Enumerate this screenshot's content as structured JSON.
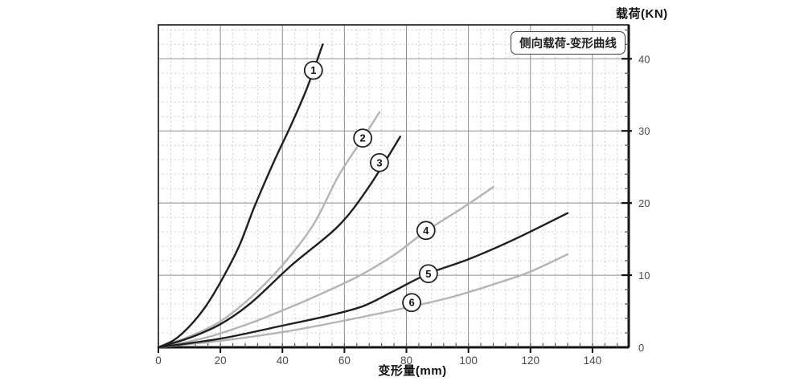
{
  "chart_data": {
    "type": "line",
    "title": "侧向载荷-变形曲线",
    "ylabel": "载荷(KN)",
    "xlabel": "变形量(mm)",
    "xlim": [
      0,
      151.7
    ],
    "ylim": [
      0,
      44.7
    ],
    "x_ticks": [
      0,
      20,
      40,
      60,
      80,
      100,
      120,
      140
    ],
    "x_minor_step": 4,
    "y_ticks": [
      0,
      10,
      20,
      30,
      40
    ],
    "y_minor_step": 2,
    "grid": {
      "major": "solid",
      "minor": "dotted"
    },
    "legend_position": "top-right-inside",
    "colors": {
      "dark_curve": "#1f1f1f",
      "light_curve": "#b4b4b4",
      "grid_major": "#8f8f8f",
      "grid_minor": "#c3c3c3",
      "axis": "#141414",
      "tick_label": "#4a4a4a"
    },
    "series": [
      {
        "name": "1",
        "tone": "dark",
        "label_xy": [
          50.0,
          38.4
        ],
        "points": [
          [
            0,
            0
          ],
          [
            5,
            1.0
          ],
          [
            10,
            2.9
          ],
          [
            15,
            5.5
          ],
          [
            20,
            9.0
          ],
          [
            26,
            14.0
          ],
          [
            31,
            19.5
          ],
          [
            37,
            25.5
          ],
          [
            43,
            31.0
          ],
          [
            48,
            36.0
          ],
          [
            53,
            42.0
          ]
        ]
      },
      {
        "name": "2",
        "tone": "light",
        "label_xy": [
          65.9,
          29.0
        ],
        "points": [
          [
            0,
            0
          ],
          [
            10,
            1.5
          ],
          [
            20,
            3.6
          ],
          [
            30,
            7.0
          ],
          [
            40,
            11.4
          ],
          [
            50,
            17.0
          ],
          [
            58,
            23.7
          ],
          [
            66,
            29.0
          ],
          [
            71.3,
            32.6
          ]
        ]
      },
      {
        "name": "3",
        "tone": "dark",
        "label_xy": [
          71.3,
          25.6
        ],
        "points": [
          [
            0,
            0
          ],
          [
            10,
            1.3
          ],
          [
            20,
            3.2
          ],
          [
            30,
            6.2
          ],
          [
            43,
            11.4
          ],
          [
            58,
            16.8
          ],
          [
            68,
            22.3
          ],
          [
            78,
            29.2
          ]
        ]
      },
      {
        "name": "4",
        "tone": "light",
        "label_xy": [
          86.3,
          16.2
        ],
        "points": [
          [
            0,
            0
          ],
          [
            15,
            1.3
          ],
          [
            30,
            3.4
          ],
          [
            45,
            6.0
          ],
          [
            57,
            8.3
          ],
          [
            66,
            10.2
          ],
          [
            76,
            12.8
          ],
          [
            86,
            16.0
          ],
          [
            98,
            19.3
          ],
          [
            108,
            22.2
          ]
        ]
      },
      {
        "name": "5",
        "tone": "dark",
        "label_xy": [
          87.1,
          10.2
        ],
        "points": [
          [
            0,
            0
          ],
          [
            20,
            1.2
          ],
          [
            40,
            3.0
          ],
          [
            55,
            4.4
          ],
          [
            66,
            5.7
          ],
          [
            75,
            7.6
          ],
          [
            87,
            10.2
          ],
          [
            100,
            12.2
          ],
          [
            115,
            15.0
          ],
          [
            132,
            18.6
          ]
        ]
      },
      {
        "name": "6",
        "tone": "light",
        "label_xy": [
          81.7,
          6.2
        ],
        "points": [
          [
            0,
            0
          ],
          [
            20,
            0.9
          ],
          [
            40,
            2.1
          ],
          [
            60,
            3.7
          ],
          [
            80,
            5.5
          ],
          [
            95,
            7.0
          ],
          [
            110,
            9.0
          ],
          [
            120,
            10.5
          ],
          [
            132,
            12.9
          ]
        ]
      }
    ]
  }
}
